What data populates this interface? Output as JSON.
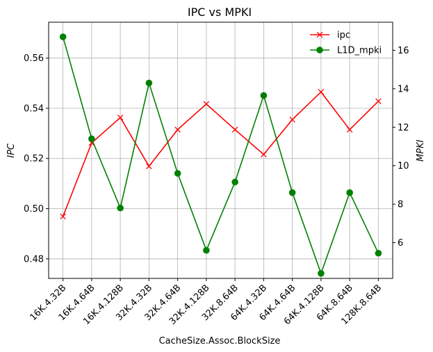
{
  "chart_data": {
    "type": "line",
    "title": "IPC vs MPKI",
    "xlabel": "CacheSize.Assoc.BlockSize",
    "ylabel_left": "IPC",
    "ylabel_right": "MPKI",
    "categories": [
      "16K.4.32B",
      "16K.4.64B",
      "16K.4.128B",
      "32K.4.32B",
      "32K.4.64B",
      "32K.4.128B",
      "32K.8.64B",
      "64K.4.32B",
      "64K.4.64B",
      "64K.4.128B",
      "64K.8.64B",
      "128K.8.64B"
    ],
    "series": [
      {
        "name": "ipc",
        "axis": "left",
        "color": "#ff0000",
        "marker": "x",
        "values": [
          0.4969,
          0.5262,
          0.5363,
          0.5169,
          0.5315,
          0.5417,
          0.5315,
          0.5216,
          0.5355,
          0.5465,
          0.5315,
          0.5428
        ]
      },
      {
        "name": "L1D_mpki",
        "axis": "right",
        "color": "#008000",
        "marker": "o",
        "values": [
          16.7,
          11.4,
          7.8,
          14.3,
          9.6,
          5.6,
          9.15,
          13.65,
          8.6,
          4.4,
          8.6,
          5.45
        ]
      }
    ],
    "ylim_left": [
      0.4722,
      0.5743
    ],
    "ylim_right": [
      4.14,
      17.46
    ],
    "yticks_left": [
      "0.48",
      "0.50",
      "0.52",
      "0.54",
      "0.56"
    ],
    "yticks_right": [
      "6",
      "8",
      "10",
      "12",
      "14",
      "16"
    ],
    "grid": true,
    "legend_position": "upper right"
  }
}
